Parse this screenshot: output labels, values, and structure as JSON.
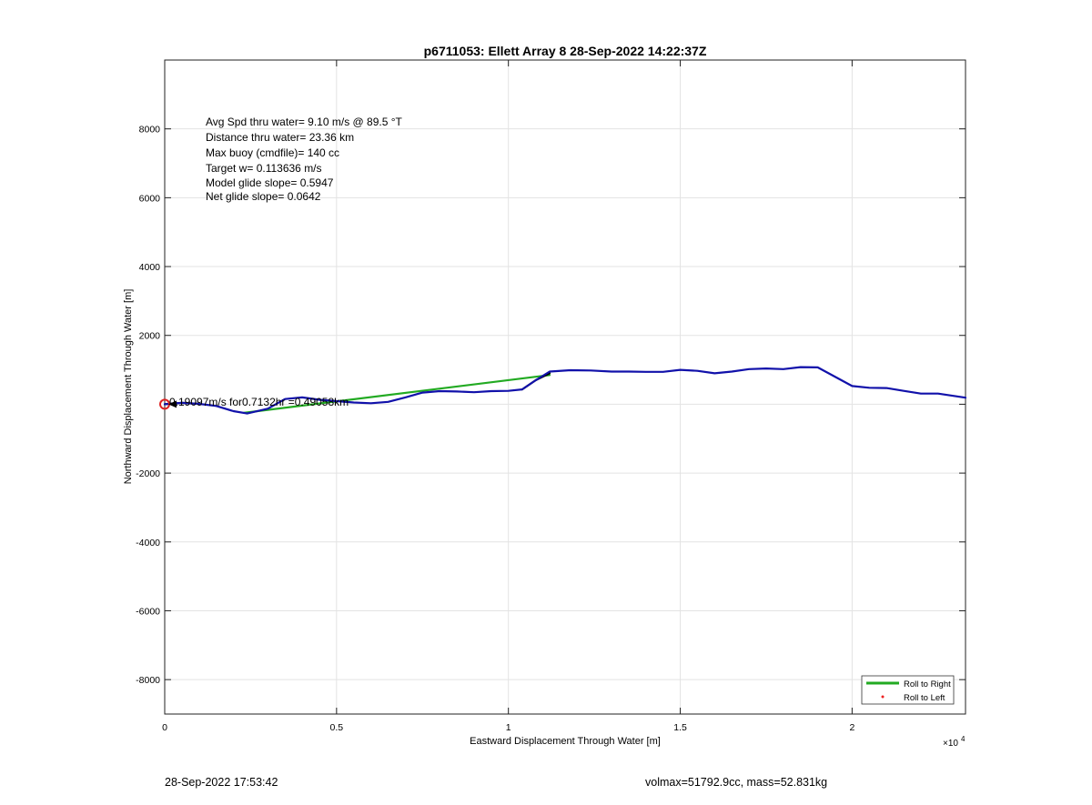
{
  "chart_data": {
    "type": "line",
    "title": "p6711053: Ellett Array 8 28-Sep-2022 14:22:37Z",
    "xlabel": "Eastward Displacement Through Water [m]",
    "ylabel": "Northward Displacement Through Water [m]",
    "x_exponent_label": "×10",
    "x_exponent_power": "4",
    "xlim": [
      0,
      23300
    ],
    "ylim": [
      -9000,
      10000
    ],
    "x_ticks": [
      0,
      5000,
      10000,
      15000,
      20000
    ],
    "x_tick_labels": [
      "0",
      "0.5",
      "1",
      "1.5",
      "2"
    ],
    "y_ticks": [
      -8000,
      -6000,
      -4000,
      -2000,
      0,
      2000,
      4000,
      6000,
      8000
    ],
    "y_tick_labels": [
      "-8000",
      "-6000",
      "-4000",
      "-2000",
      "",
      "2000",
      "4000",
      "6000",
      "8000"
    ],
    "grid": true,
    "legend_position": "bottom-right",
    "annotations": [
      "Avg Spd thru water=  9.10 m/s @  89.5 °T",
      "Distance thru water= 23.36 km",
      "Max buoy (cmdfile)= 140 cc",
      "Target w= 0.113636 m/s",
      "Model glide slope= 0.5947",
      "Net glide slope= 0.0642"
    ],
    "overlap_label": "0.19097m/s for0.7132hr =0.49058km",
    "start_marker": {
      "x": 0,
      "y": 0,
      "color": "#dd2222"
    },
    "series": [
      {
        "name": "Roll to Right",
        "style": "line",
        "color": "#22aa22",
        "x": [
          2300,
          11200
        ],
        "y": [
          -250,
          850
        ]
      },
      {
        "name": "Roll to Left",
        "style": "dot",
        "color": "#ee2222",
        "x": [],
        "y": []
      },
      {
        "name": "",
        "style": "line",
        "color": "#000000",
        "x": [
          0,
          500,
          1000
        ],
        "y": [
          0,
          40,
          10
        ]
      },
      {
        "name": "",
        "style": "line",
        "color": "#000000",
        "x": [
          10400,
          10800,
          11200
        ],
        "y": [
          430,
          700,
          900
        ]
      },
      {
        "name": "",
        "style": "line",
        "color": "#1111aa",
        "x": [
          0,
          500,
          1000,
          1500,
          2000,
          2400,
          3000,
          3500,
          4000,
          4500,
          5000,
          5500,
          6000,
          6500,
          7000,
          7500,
          8000,
          8500,
          9000,
          9500,
          10000,
          10400,
          10800,
          11200,
          11800,
          12400,
          13000,
          13500,
          14000,
          14500,
          15000,
          15500,
          16000,
          16500,
          17000,
          17500,
          18000,
          18500,
          19000,
          19500,
          20000,
          20500,
          21000,
          21500,
          22000,
          22500,
          23300
        ],
        "y": [
          0,
          40,
          10,
          -50,
          -200,
          -270,
          -130,
          150,
          200,
          130,
          90,
          50,
          30,
          70,
          200,
          340,
          380,
          370,
          350,
          380,
          390,
          430,
          700,
          950,
          990,
          980,
          950,
          950,
          940,
          940,
          1000,
          970,
          900,
          950,
          1020,
          1040,
          1020,
          1080,
          1070,
          800,
          530,
          480,
          470,
          390,
          310,
          310,
          190
        ]
      }
    ]
  },
  "footer": {
    "left": "28-Sep-2022 17:53:42",
    "right": "volmax=51792.9cc, mass=52.831kg"
  }
}
